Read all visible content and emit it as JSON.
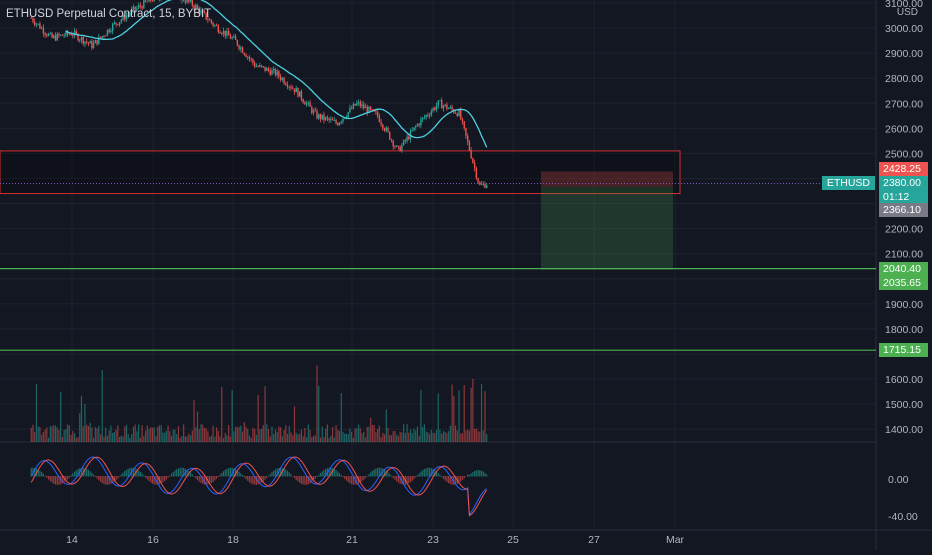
{
  "header": {
    "title": "ETHUSD Perpetual Contract, 15, BYBIT"
  },
  "price_axis": {
    "unit": "USD",
    "ticks": [
      "3100.00",
      "3000.00",
      "2900.00",
      "2800.00",
      "2700.00",
      "2600.00",
      "2500.00",
      "2200.00",
      "2100.00",
      "1900.00",
      "1800.00",
      "1600.00",
      "1500.00",
      "1400.00"
    ],
    "osc_ticks": [
      "0.00",
      "-40.00"
    ]
  },
  "time_axis": {
    "ticks": [
      "14",
      "16",
      "18",
      "21",
      "23",
      "25",
      "27",
      "Mar"
    ]
  },
  "price_tags": {
    "symbol": "ETHUSD",
    "stop": "2428.25",
    "last": "2380.00",
    "countdown": "01:12",
    "entry": "2366.10",
    "target_line": "2040.40",
    "target": "2035.65",
    "support": "1715.15"
  },
  "colors": {
    "background": "#131722",
    "up": "#26a69a",
    "down": "#ef5350",
    "ma": "#4dd0e1",
    "support_line": "#4caf50",
    "zone_border": "#d32f2f",
    "stop_tag": "#ef5350",
    "last_tag": "#26a69a",
    "entry_tag": "#787b86",
    "target_tag": "#4caf50"
  },
  "chart_data": {
    "type": "candlestick",
    "symbol": "ETHUSD Perpetual Contract",
    "interval": "15",
    "exchange": "BYBIT",
    "ylim": [
      1350,
      3110
    ],
    "x_ticks": [
      "14",
      "16",
      "18",
      "21",
      "23",
      "25",
      "27",
      "Mar"
    ],
    "price_path": [
      {
        "day": 13.0,
        "close": 3040
      },
      {
        "day": 13.5,
        "close": 2960
      },
      {
        "day": 14.0,
        "close": 2980
      },
      {
        "day": 14.5,
        "close": 2930
      },
      {
        "day": 15.0,
        "close": 3010
      },
      {
        "day": 15.5,
        "close": 3070
      },
      {
        "day": 16.0,
        "close": 3120
      },
      {
        "day": 16.5,
        "close": 3140
      },
      {
        "day": 17.0,
        "close": 3090
      },
      {
        "day": 17.5,
        "close": 3010
      },
      {
        "day": 18.0,
        "close": 2950
      },
      {
        "day": 18.5,
        "close": 2850
      },
      {
        "day": 19.0,
        "close": 2820
      },
      {
        "day": 19.5,
        "close": 2750
      },
      {
        "day": 20.0,
        "close": 2650
      },
      {
        "day": 20.5,
        "close": 2620
      },
      {
        "day": 21.0,
        "close": 2700
      },
      {
        "day": 21.5,
        "close": 2650
      },
      {
        "day": 22.0,
        "close": 2510
      },
      {
        "day": 22.5,
        "close": 2620
      },
      {
        "day": 23.0,
        "close": 2700
      },
      {
        "day": 23.5,
        "close": 2660
      },
      {
        "day": 23.8,
        "close": 2490
      },
      {
        "day": 24.0,
        "close": 2370
      },
      {
        "day": 24.2,
        "close": 2380
      }
    ],
    "zones": {
      "resistance_band": [
        2340,
        2510
      ],
      "position_stop": 2428.25,
      "position_entry": 2366.1,
      "position_target": 2035.65
    },
    "horizontal_lines": [
      2040.4,
      1715.15
    ],
    "oscillator_ticks": [
      "0.00",
      "-40.00"
    ]
  }
}
